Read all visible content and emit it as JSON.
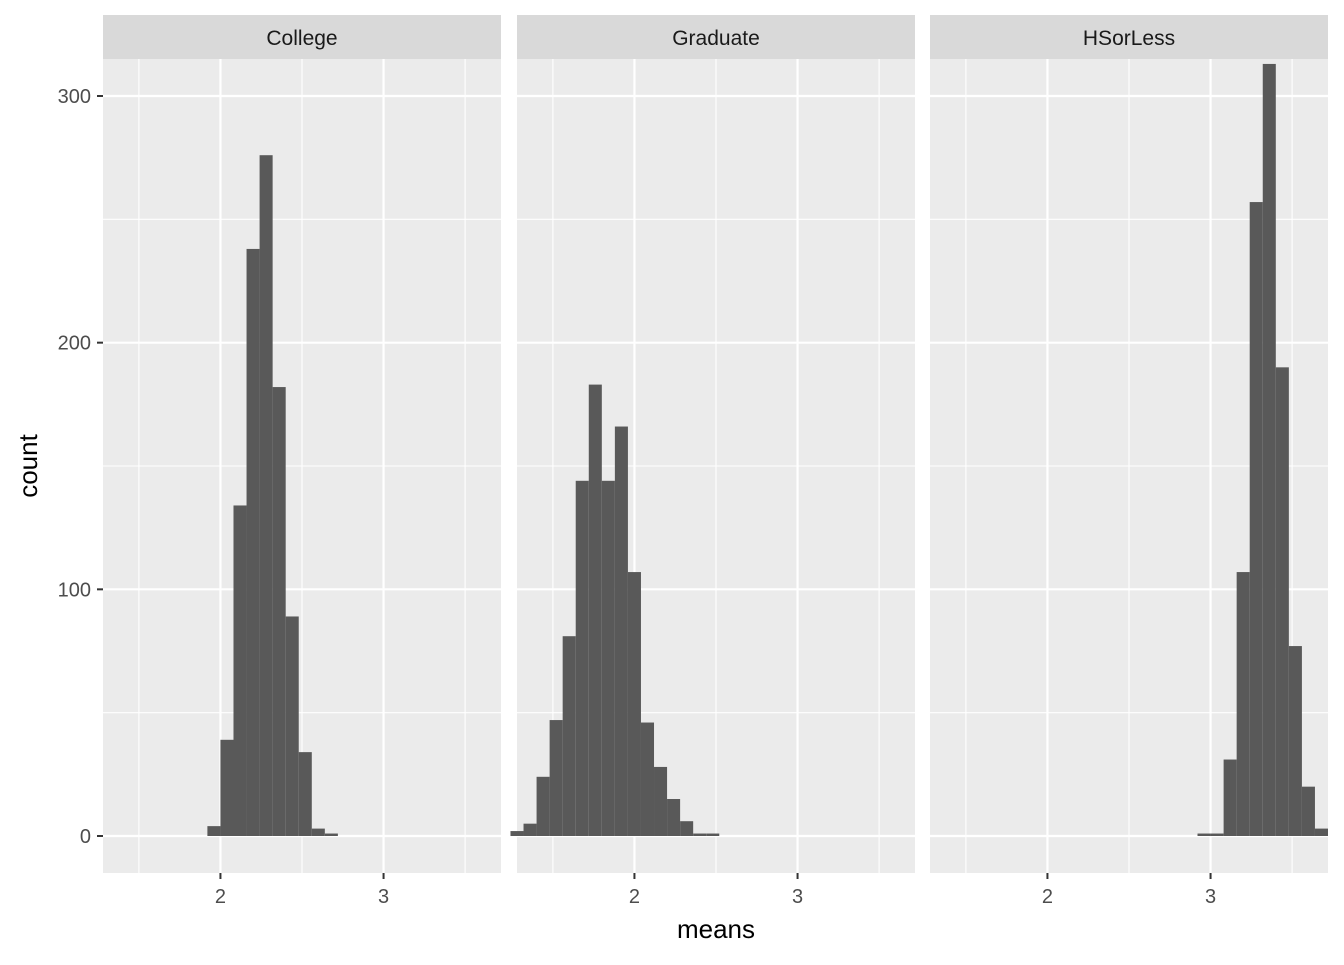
{
  "chart_data": {
    "type": "histogram-facet",
    "xlabel": "means",
    "ylabel": "count",
    "bin_width": 0.08,
    "xlim": [
      1.28,
      3.72
    ],
    "ylim": [
      -15,
      315
    ],
    "x_major_ticks": [
      2,
      3
    ],
    "x_minor_ticks": [
      1.5,
      2.5,
      3.5
    ],
    "y_major_ticks": [
      0,
      100,
      200,
      300
    ],
    "y_minor_ticks": [
      50,
      150,
      250
    ],
    "colors": {
      "bar": "#595959",
      "panel_bg": "#ebebeb",
      "strip_bg": "#d9d9d9",
      "grid": "#ffffff",
      "text": "#4d4d4d",
      "title_text": "#000000"
    },
    "panels": [
      {
        "label": "College",
        "bins": [
          {
            "x": 1.96,
            "count": 4
          },
          {
            "x": 2.04,
            "count": 39
          },
          {
            "x": 2.12,
            "count": 134
          },
          {
            "x": 2.2,
            "count": 238
          },
          {
            "x": 2.28,
            "count": 276
          },
          {
            "x": 2.36,
            "count": 182
          },
          {
            "x": 2.44,
            "count": 89
          },
          {
            "x": 2.52,
            "count": 34
          },
          {
            "x": 2.6,
            "count": 3
          },
          {
            "x": 2.68,
            "count": 1
          }
        ]
      },
      {
        "label": "Graduate",
        "bins": [
          {
            "x": 1.28,
            "count": 2
          },
          {
            "x": 1.36,
            "count": 5
          },
          {
            "x": 1.44,
            "count": 24
          },
          {
            "x": 1.52,
            "count": 47
          },
          {
            "x": 1.6,
            "count": 81
          },
          {
            "x": 1.68,
            "count": 144
          },
          {
            "x": 1.76,
            "count": 183
          },
          {
            "x": 1.84,
            "count": 144
          },
          {
            "x": 1.92,
            "count": 166
          },
          {
            "x": 2.0,
            "count": 107
          },
          {
            "x": 2.08,
            "count": 46
          },
          {
            "x": 2.16,
            "count": 28
          },
          {
            "x": 2.24,
            "count": 15
          },
          {
            "x": 2.32,
            "count": 6
          },
          {
            "x": 2.4,
            "count": 1
          },
          {
            "x": 2.48,
            "count": 1
          }
        ]
      },
      {
        "label": "HSorLess",
        "bins": [
          {
            "x": 2.96,
            "count": 1
          },
          {
            "x": 3.04,
            "count": 1
          },
          {
            "x": 3.12,
            "count": 31
          },
          {
            "x": 3.2,
            "count": 107
          },
          {
            "x": 3.28,
            "count": 257
          },
          {
            "x": 3.36,
            "count": 313
          },
          {
            "x": 3.44,
            "count": 190
          },
          {
            "x": 3.52,
            "count": 77
          },
          {
            "x": 3.6,
            "count": 20
          },
          {
            "x": 3.68,
            "count": 3
          }
        ]
      }
    ]
  }
}
